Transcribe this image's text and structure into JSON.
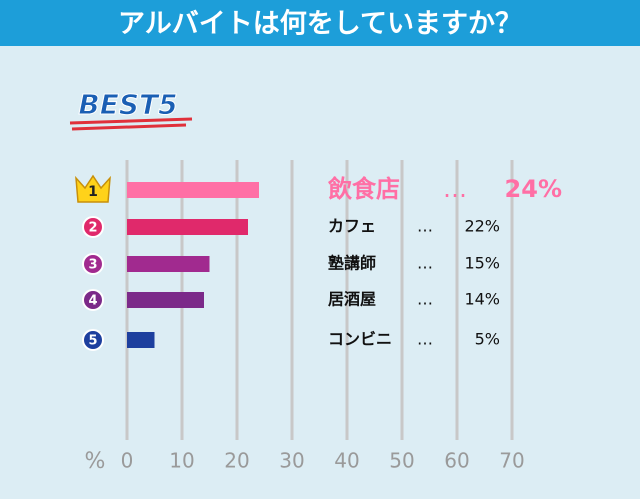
{
  "chart_data": {
    "type": "bar",
    "orientation": "horizontal",
    "title": "アルバイトは何をしていますか？",
    "subtitle": "BEST5",
    "ranks": [
      "1",
      "2",
      "3",
      "4",
      "5"
    ],
    "categories": [
      "飲食店",
      "カフェ",
      "塾講師",
      "居酒屋",
      "コンビニ"
    ],
    "values": [
      24,
      22,
      15,
      14,
      5
    ],
    "value_labels": [
      "24%",
      "22%",
      "15%",
      "14%",
      "5%"
    ],
    "separator": "…",
    "colors": [
      "#ff6fa5",
      "#e0296b",
      "#a12a8f",
      "#7b2a89",
      "#1d3f9e"
    ],
    "x_label": "%",
    "xlim": [
      0,
      70
    ],
    "xticks": [
      0,
      10,
      20,
      30,
      40,
      50,
      60,
      70
    ],
    "grid": true
  }
}
